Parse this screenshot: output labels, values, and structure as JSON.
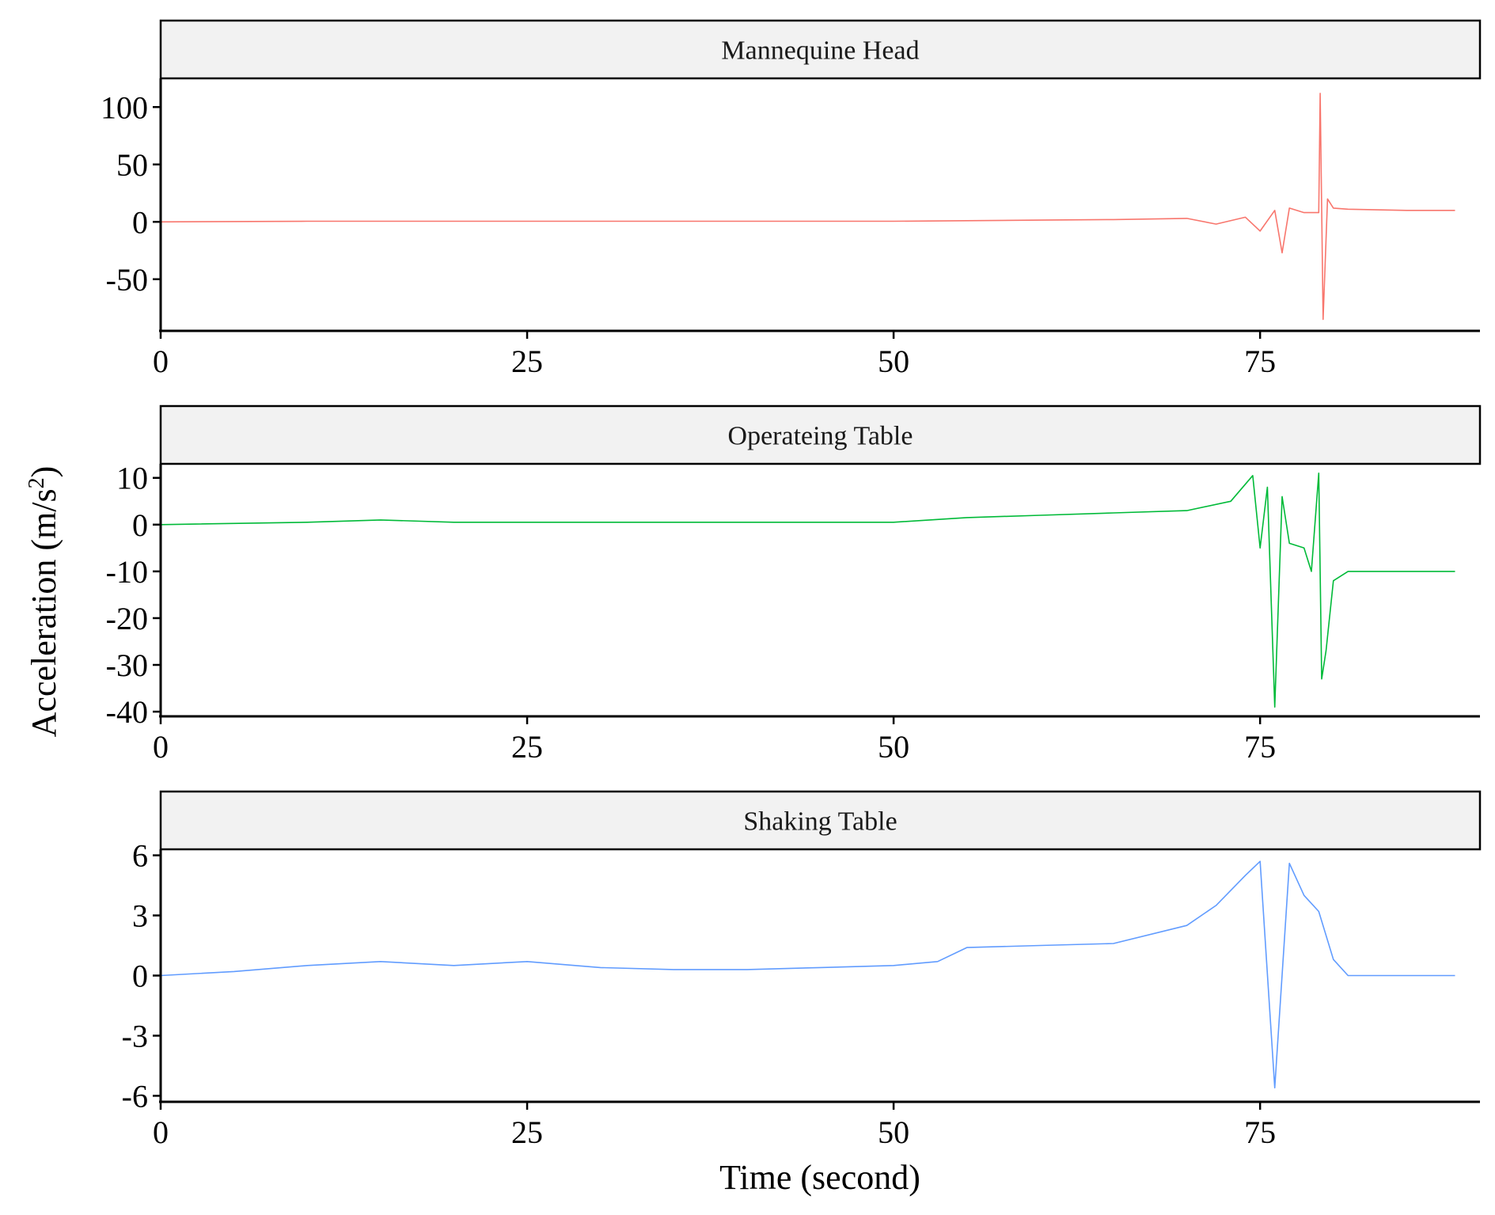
{
  "chart_data": {
    "type": "line",
    "xlabel": "Time (second)",
    "ylabel": "Acceleration (m/s",
    "ylabel_sup": "2",
    "ylabel_end": ")",
    "xlim": [
      0,
      90
    ],
    "x_ticks": [
      0,
      25,
      50,
      75
    ],
    "panels": [
      {
        "strip": "Mannequine Head",
        "color": "#F8766D",
        "ylim": [
          -95,
          125
        ],
        "y_ticks": [
          100,
          50,
          0,
          -50
        ],
        "y_tick_labels": [
          "100",
          "50",
          "0",
          "-50"
        ],
        "x": [
          0,
          10,
          20,
          30,
          40,
          50,
          55,
          60,
          65,
          70,
          72,
          74,
          75,
          76,
          76.5,
          77,
          78,
          79,
          79.1,
          79.3,
          79.6,
          80,
          81,
          85,
          88.3
        ],
        "values": [
          0,
          0.5,
          0.5,
          0.5,
          0.5,
          0.5,
          1,
          1.5,
          2,
          3,
          -2,
          4,
          -8,
          10,
          -27,
          12,
          8,
          8,
          112,
          -85,
          20,
          12,
          11,
          10,
          10
        ]
      },
      {
        "strip": "Operateing Table",
        "color": "#00BA38",
        "ylim": [
          -41,
          13
        ],
        "y_ticks": [
          10,
          0,
          -10,
          -20,
          -30,
          -40
        ],
        "y_tick_labels": [
          "10",
          "0",
          "-10",
          "-20",
          "-30",
          "-40"
        ],
        "x": [
          0,
          10,
          15,
          20,
          30,
          40,
          50,
          55,
          60,
          65,
          70,
          73,
          74.5,
          75,
          75.5,
          76,
          76.5,
          77,
          78,
          78.5,
          79,
          79.2,
          79.5,
          80,
          81,
          85,
          88.3
        ],
        "values": [
          0,
          0.5,
          1,
          0.5,
          0.5,
          0.5,
          0.5,
          1.5,
          2,
          2.5,
          3,
          5,
          10.5,
          -5,
          8,
          -39,
          6,
          -4,
          -5,
          -10,
          11,
          -33,
          -27,
          -12,
          -10,
          -10,
          -10
        ]
      },
      {
        "strip": "Shaking Table",
        "color": "#619CFF",
        "ylim": [
          -6.3,
          6.3
        ],
        "y_ticks": [
          6,
          3,
          0,
          -3,
          -6
        ],
        "y_tick_labels": [
          "6",
          "3",
          "0",
          "-3",
          "-6"
        ],
        "x": [
          0,
          5,
          10,
          15,
          20,
          25,
          30,
          35,
          40,
          45,
          50,
          53,
          55,
          60,
          65,
          70,
          72,
          74,
          75,
          76,
          77,
          78,
          79,
          80,
          81,
          85,
          88.3
        ],
        "values": [
          0,
          0.2,
          0.5,
          0.7,
          0.5,
          0.7,
          0.4,
          0.3,
          0.3,
          0.4,
          0.5,
          0.7,
          1.4,
          1.5,
          1.6,
          2.5,
          3.5,
          5,
          5.7,
          -5.6,
          5.6,
          4,
          3.2,
          0.8,
          0,
          0,
          0
        ]
      }
    ]
  }
}
